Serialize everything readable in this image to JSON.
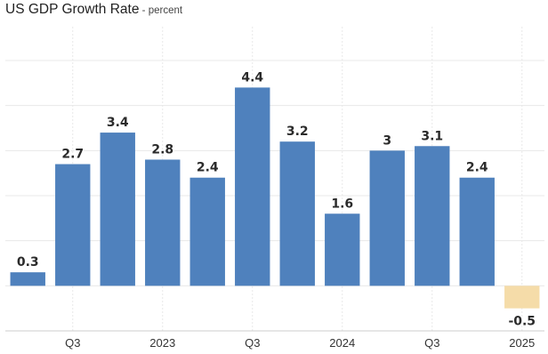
{
  "chart_data": {
    "type": "bar",
    "title": "US GDP Growth Rate",
    "subtitle": "percent",
    "categories": [
      "",
      "Q3",
      "",
      "2023",
      "",
      "Q3",
      "",
      "2024",
      "",
      "Q3",
      "",
      "2025"
    ],
    "values": [
      0.3,
      2.7,
      3.4,
      2.8,
      2.4,
      4.4,
      3.2,
      1.6,
      3,
      3.1,
      2.4,
      -0.5
    ],
    "value_labels": [
      "0.3",
      "2.7",
      "3.4",
      "2.8",
      "2.4",
      "4.4",
      "3.2",
      "1.6",
      "3",
      "3.1",
      "2.4",
      "-0.5"
    ],
    "ylim": [
      -1.0,
      5.75
    ],
    "grid": true,
    "colors": {
      "positive": "#4f81bd",
      "negative": "#f5dca9",
      "grid": "#e8e8e8",
      "axis": "#cccccc"
    }
  }
}
